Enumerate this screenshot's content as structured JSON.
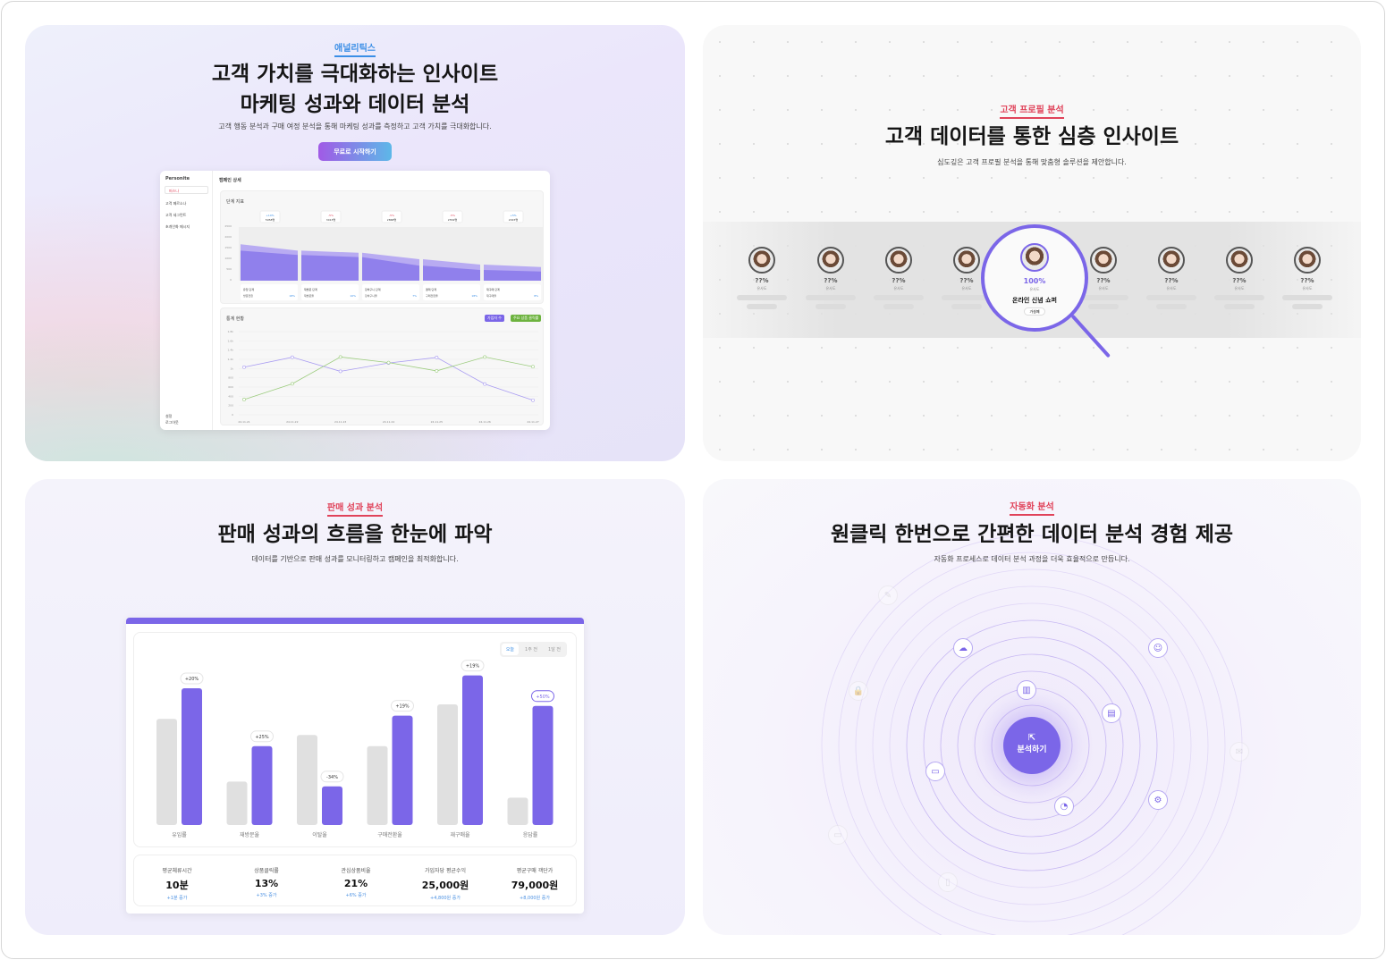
{
  "panel1": {
    "eyebrow": "애널리틱스",
    "title_line1": "고객 가치를 극대화하는 인사이트",
    "title_line2": "마케팅 성과와 데이터 분석",
    "subtitle": "고객 행동 분석과 구매 여정 분석을 통해 마케팅 성과를 측정하고 고객 가치를 극대화합니다.",
    "cta": "무료로 시작하기",
    "dashboard": {
      "brand": "Personite",
      "selector": "퍼스나",
      "nav": [
        "고객 페르소나",
        "고객 세그먼트",
        "초개인화 메시지"
      ],
      "settings": "설정",
      "logout": "로그아웃",
      "header": "캠페인 상세",
      "funnel": {
        "title": "단계 지표",
        "stages": [
          {
            "change": "+10%",
            "count": "5958명",
            "label": "유입 단계",
            "metric_label": "방문전환",
            "metric": "18%"
          },
          {
            "change": "-5%",
            "count": "3013명",
            "label": "재방문 단계",
            "metric_label": "재방문율",
            "metric": "10%"
          },
          {
            "change": "-5%",
            "count": "2868명",
            "label": "장바구니 단계",
            "metric_label": "장바구니율",
            "metric": "7%"
          },
          {
            "change": "-5%",
            "count": "2554명",
            "label": "결제 단계",
            "metric_label": "구매전환율",
            "metric": "18%"
          },
          {
            "change": "+5%",
            "count": "2015명",
            "label": "재구매 단계",
            "metric_label": "재구매율",
            "metric": "8%"
          }
        ],
        "values_a": [
          3400,
          2800,
          2600,
          2000,
          1500
        ],
        "values_b": [
          2800,
          2400,
          2200,
          1400,
          1000
        ],
        "y_ticks": [
          "0",
          "500",
          "1000",
          "1500",
          "2000",
          "2500"
        ]
      },
      "line": {
        "title": "통계 현황",
        "legend": [
          "가입자 수",
          "주요 상품 클릭률"
        ],
        "x": [
          "24.11.21",
          "24.11.22",
          "24.11.23",
          "24.11.24",
          "24.11.25",
          "24.11.26",
          "24.11.27"
        ],
        "series_a": [
          1030,
          1245,
          940,
          1120,
          1240,
          665,
          315
        ],
        "series_b": [
          330,
          670,
          1250,
          1130,
          950,
          1250,
          1040
        ],
        "ylim": [
          0,
          1800
        ],
        "y_ticks": [
          "0",
          "200",
          "400",
          "600",
          "800",
          "1k",
          "1.2k",
          "1.4k",
          "1.6k",
          "1.8k"
        ]
      }
    }
  },
  "panel2": {
    "eyebrow": "고객 프로필 분석",
    "title": "고객 데이터를 통한 심층 인사이트",
    "subtitle": "심도깊은 고객 프로필 분석을 통해 맞춤형 솔루션을 제안합니다.",
    "unknown_pct": "??%",
    "similarity_label": "유사도",
    "match": {
      "pct": "100%",
      "name": "온라인 신념 쇼퍼",
      "tag": "가설폐"
    }
  },
  "panel3": {
    "eyebrow": "판매 성과 분석",
    "title": "판매 성과의 흐름을 한눈에 파악",
    "subtitle": "데이터를 기반으로 판매 성과를 모니터링하고 캠페인을 최적화합니다.",
    "tabs": [
      "오늘",
      "1주 전",
      "1달 전"
    ],
    "active_tab": 0,
    "chart_data": {
      "type": "bar",
      "categories": [
        "유입률",
        "재방문율",
        "이탈율",
        "구매전환율",
        "재구매율",
        "응답률"
      ],
      "series": [
        {
          "values": [
            66,
            27,
            56,
            49,
            75,
            17
          ]
        },
        {
          "values": [
            85,
            49,
            24,
            68,
            93,
            74
          ]
        }
      ],
      "labels": [
        "+20%",
        "+25%",
        "-34%",
        "+19%",
        "+19%",
        "+50%"
      ],
      "ylim": [
        0,
        100
      ],
      "grid": false
    },
    "kpis": [
      {
        "label": "평균체류시간",
        "value": "10분",
        "delta": "+1분 증가"
      },
      {
        "label": "상품클릭률",
        "value": "13%",
        "delta": "+3% 증가"
      },
      {
        "label": "관심상품비율",
        "value": "21%",
        "delta": "+6% 증가"
      },
      {
        "label": "가입자당 평균수익",
        "value": "25,000원",
        "delta": "+4,800원 증가"
      },
      {
        "label": "평균구매 객단가",
        "value": "79,000원",
        "delta": "+8,000원 증가"
      }
    ]
  },
  "panel4": {
    "eyebrow": "자동화 분석",
    "title": "원클릭 한번으로 간편한 데이터 분석 경험 제공",
    "subtitle": "자동화 프로세스로 데이터 분석 과정을 더욱 효율적으로 만듭니다.",
    "button": "분석하기"
  },
  "colors": {
    "accent": "#7b66e8",
    "eyebrow_red": "#e0435a",
    "eyebrow_blue": "#3a8ee6",
    "green": "#8cc56b"
  }
}
